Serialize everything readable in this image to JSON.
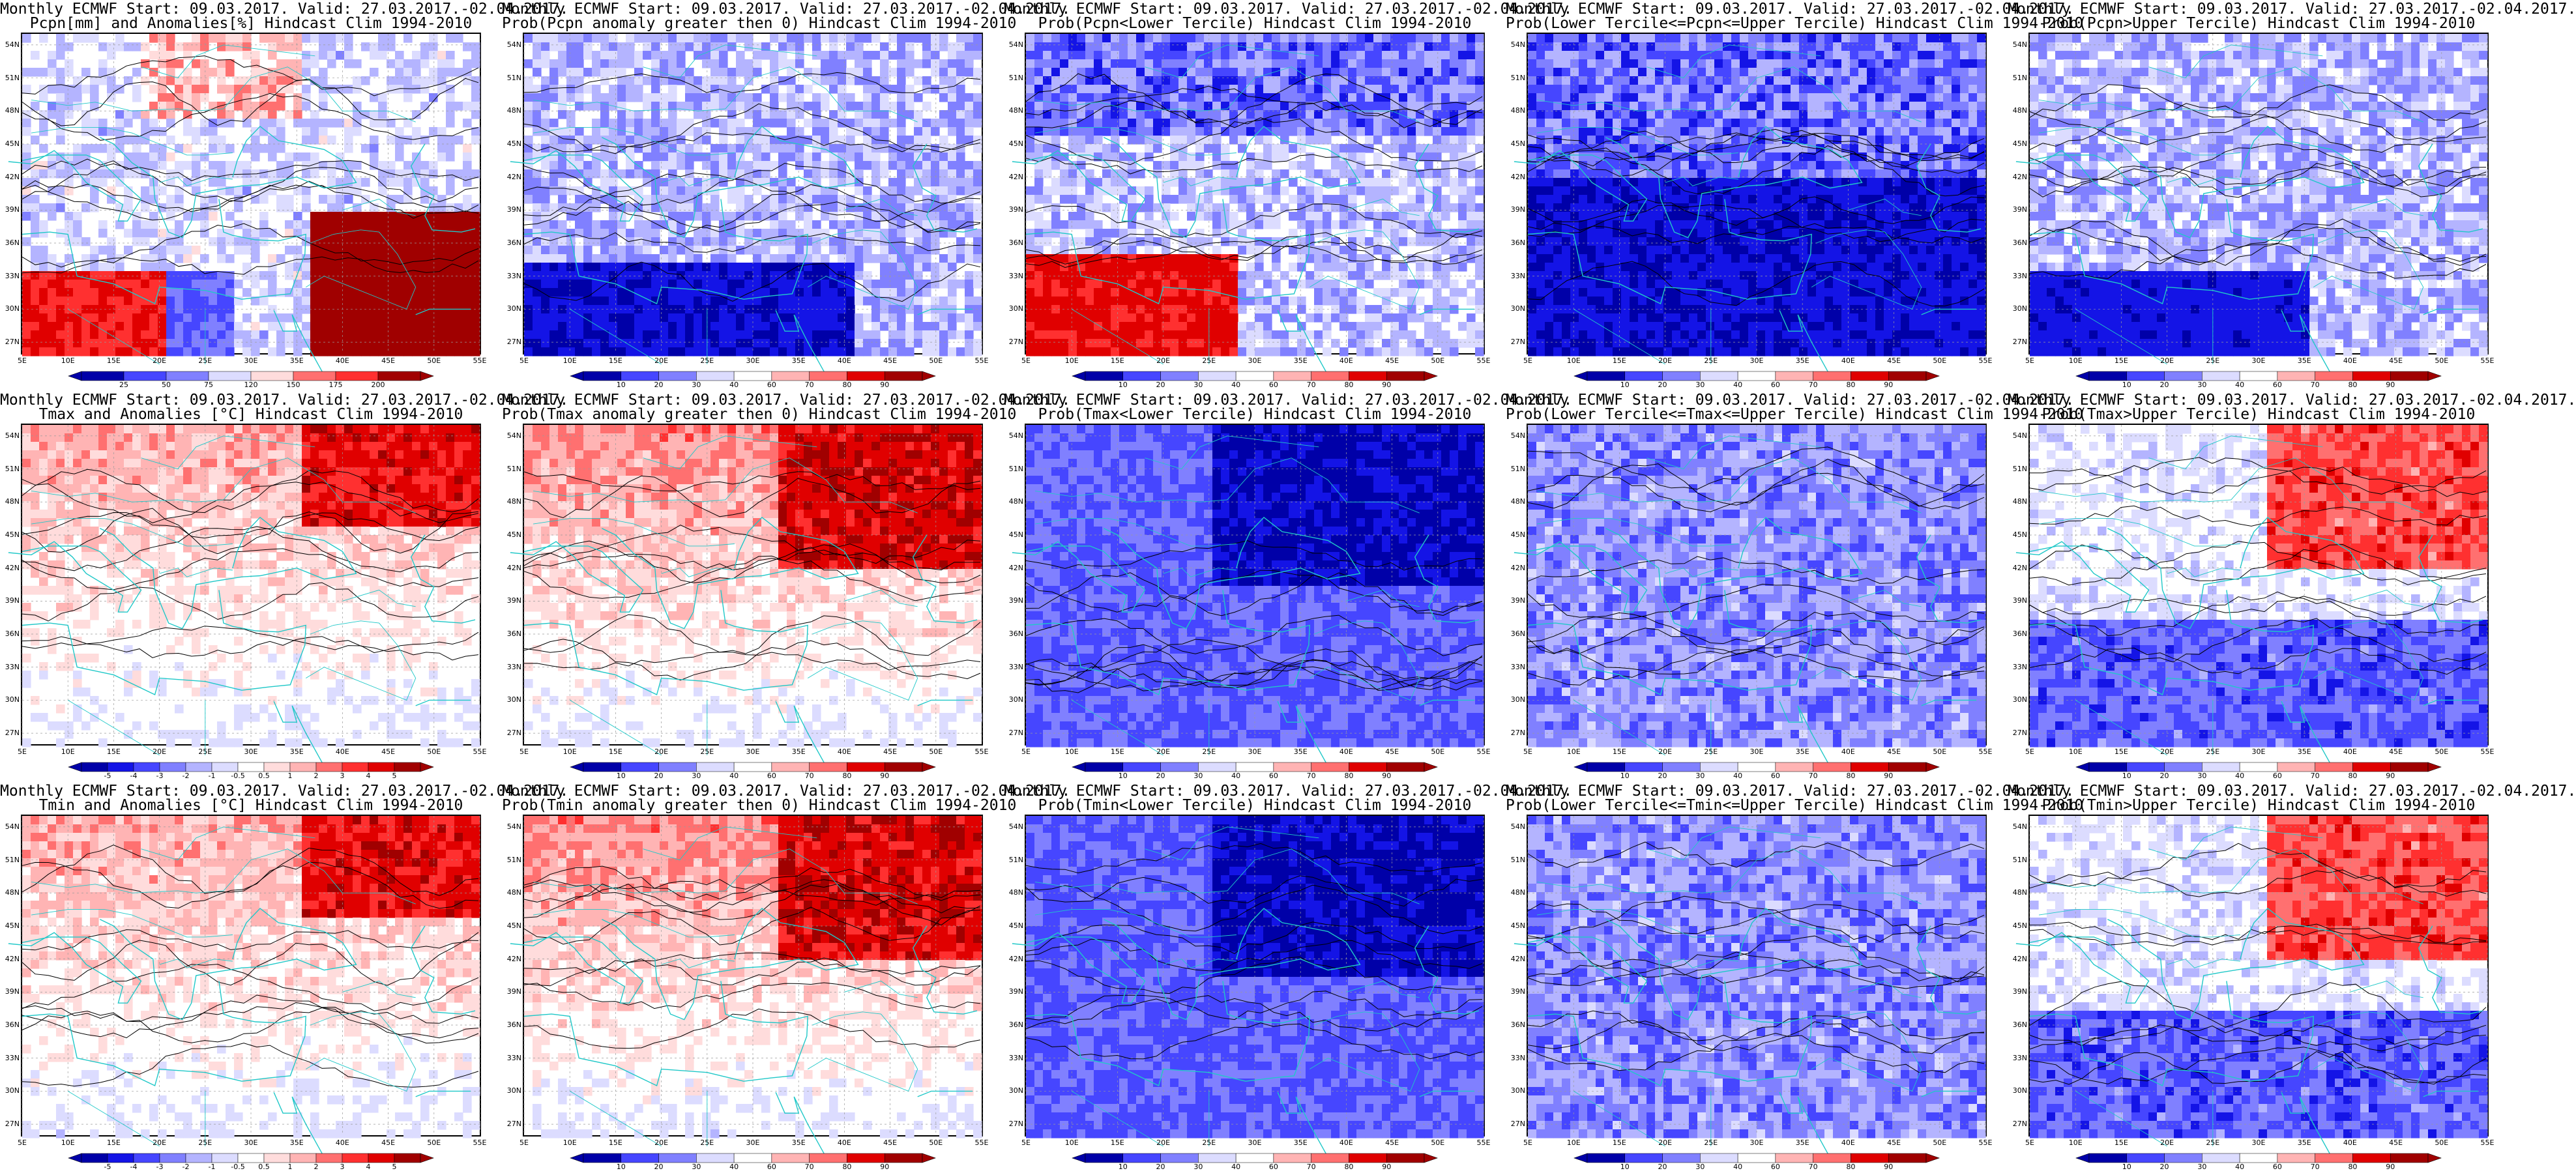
{
  "lat_ticks": [
    "54N",
    "51N",
    "48N",
    "45N",
    "42N",
    "39N",
    "36N",
    "33N",
    "30N",
    "27N"
  ],
  "lon_ticks": [
    "5E",
    "10E",
    "15E",
    "20E",
    "25E",
    "30E",
    "35E",
    "40E",
    "45E",
    "50E",
    "55E"
  ],
  "colors": {
    "coast": "#20c8c8",
    "contour": "#000000",
    "diverging_scale": [
      "#0000a8",
      "#1414e6",
      "#4646ff",
      "#8080ff",
      "#b4b4ff",
      "#dcdcff",
      "#ffffff",
      "#ffdcdc",
      "#ffb4b4",
      "#ff7070",
      "#ff3030",
      "#e00000",
      "#a00000"
    ]
  },
  "panels": [
    {
      "title1": "Monthly ECMWF Start: 09.03.2017. Valid: 27.03.2017.-02.04.2017.",
      "title2": "Pcpn[mm] and Anomalies[%] Hindcast Clim 1994-2010",
      "scale": [
        "25",
        "50",
        "75",
        "120",
        "150",
        "175",
        "200"
      ],
      "pattern": "pcpn_anom"
    },
    {
      "title1": "Monthly ECMWF Start: 09.03.2017. Valid: 27.03.2017.-02.04.2017.",
      "title2": "Prob(Pcpn anomaly greater then 0) Hindcast Clim 1994-2010",
      "scale": [
        "10",
        "20",
        "30",
        "40",
        "60",
        "70",
        "80",
        "90"
      ],
      "pattern": "pcpn_prob"
    },
    {
      "title1": "Monthly ECMWF Start: 09.03.2017. Valid: 27.03.2017.-02.04.2017.",
      "title2": "Prob(Pcpn<Lower Tercile) Hindcast Clim 1994-2010",
      "scale": [
        "10",
        "20",
        "30",
        "40",
        "60",
        "70",
        "80",
        "90"
      ],
      "pattern": "pcpn_lower"
    },
    {
      "title1": "Monthly ECMWF Start: 09.03.2017. Valid: 27.03.2017.-02.04.2017.",
      "title2": "Prob(Lower Tercile<=Pcpn<=Upper Tercile) Hindcast Clim 1994-2010",
      "scale": [
        "10",
        "20",
        "30",
        "40",
        "60",
        "70",
        "80",
        "90"
      ],
      "pattern": "pcpn_mid"
    },
    {
      "title1": "Monthly ECMWF Start: 09.03.2017. Valid: 27.03.2017.-02.04.2017.",
      "title2": "Prob(Pcpn>Upper Tercile) Hindcast Clim 1994-2010",
      "scale": [
        "10",
        "20",
        "30",
        "40",
        "60",
        "70",
        "80",
        "90"
      ],
      "pattern": "pcpn_upper"
    },
    {
      "title1": "Monthly ECMWF Start: 09.03.2017. Valid: 27.03.2017.-02.04.2017.",
      "title2": "Tmax and Anomalies [°C] Hindcast Clim 1994-2010",
      "scale": [
        "-5",
        "-4",
        "-3",
        "-2",
        "-1",
        "-0.5",
        "0.5",
        "1",
        "2",
        "3",
        "4",
        "5"
      ],
      "pattern": "t_anom"
    },
    {
      "title1": "Monthly ECMWF Start: 09.03.2017. Valid: 27.03.2017.-02.04.2017.",
      "title2": "Prob(Tmax anomaly greater then 0) Hindcast Clim 1994-2010",
      "scale": [
        "10",
        "20",
        "30",
        "40",
        "60",
        "70",
        "80",
        "90"
      ],
      "pattern": "t_prob"
    },
    {
      "title1": "Monthly ECMWF Start: 09.03.2017. Valid: 27.03.2017.-02.04.2017.",
      "title2": "Prob(Tmax<Lower Tercile) Hindcast Clim 1994-2010",
      "scale": [
        "10",
        "20",
        "30",
        "40",
        "60",
        "70",
        "80",
        "90"
      ],
      "pattern": "t_lower"
    },
    {
      "title1": "Monthly ECMWF Start: 09.03.2017. Valid: 27.03.2017.-02.04.2017.",
      "title2": "Prob(Lower Tercile<=Tmax<=Upper Tercile) Hindcast Clim 1994-2010",
      "scale": [
        "10",
        "20",
        "30",
        "40",
        "60",
        "70",
        "80",
        "90"
      ],
      "pattern": "t_mid"
    },
    {
      "title1": "Monthly ECMWF Start: 09.03.2017. Valid: 27.03.2017.-02.04.2017.",
      "title2": "Prob(Tmax>Upper Tercile) Hindcast Clim 1994-2010",
      "scale": [
        "10",
        "20",
        "30",
        "40",
        "60",
        "70",
        "80",
        "90"
      ],
      "pattern": "t_upper"
    },
    {
      "title1": "Monthly ECMWF Start: 09.03.2017. Valid: 27.03.2017.-02.04.2017.",
      "title2": "Tmin and Anomalies [°C] Hindcast Clim 1994-2010",
      "scale": [
        "-5",
        "-4",
        "-3",
        "-2",
        "-1",
        "-0.5",
        "0.5",
        "1",
        "2",
        "3",
        "4",
        "5"
      ],
      "pattern": "t_anom"
    },
    {
      "title1": "Monthly ECMWF Start: 09.03.2017. Valid: 27.03.2017.-02.04.2017.",
      "title2": "Prob(Tmin anomaly greater then 0) Hindcast Clim 1994-2010",
      "scale": [
        "10",
        "20",
        "30",
        "40",
        "60",
        "70",
        "80",
        "90"
      ],
      "pattern": "t_prob"
    },
    {
      "title1": "Monthly ECMWF Start: 09.03.2017. Valid: 27.03.2017.-02.04.2017.",
      "title2": "Prob(Tmin<Lower Tercile) Hindcast Clim 1994-2010",
      "scale": [
        "10",
        "20",
        "30",
        "40",
        "60",
        "70",
        "80",
        "90"
      ],
      "pattern": "t_lower"
    },
    {
      "title1": "Monthly ECMWF Start: 09.03.2017. Valid: 27.03.2017.-02.04.2017.",
      "title2": "Prob(Lower Tercile<=Tmin<=Upper Tercile) Hindcast Clim 1994-2010",
      "scale": [
        "10",
        "20",
        "30",
        "40",
        "60",
        "70",
        "80",
        "90"
      ],
      "pattern": "t_mid"
    },
    {
      "title1": "Monthly ECMWF Start: 09.03.2017. Valid: 27.03.2017.-02.04.2017.",
      "title2": "Prob(Tmin>Upper Tercile) Hindcast Clim 1994-2010",
      "scale": [
        "10",
        "20",
        "30",
        "40",
        "60",
        "70",
        "80",
        "90"
      ],
      "pattern": "t_upper"
    }
  ]
}
